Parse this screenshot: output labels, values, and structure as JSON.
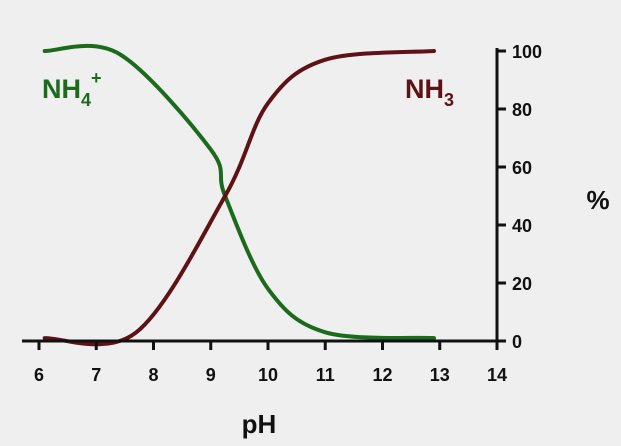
{
  "chart_data": {
    "type": "line",
    "xlabel": "pH",
    "ylabel": "%",
    "xlim": [
      6,
      14
    ],
    "ylim": [
      0,
      100
    ],
    "xticks": [
      6,
      7,
      8,
      9,
      10,
      11,
      12,
      13,
      14
    ],
    "yticks": [
      0,
      20,
      40,
      60,
      80,
      100
    ],
    "y_axis_position": "right",
    "grid": false,
    "legend": "none (series labeled directly on plot)",
    "series": [
      {
        "name": "NH4+",
        "label_main": "NH",
        "label_sub": "4",
        "label_sup": "+",
        "label_position": "upper-left",
        "color": "#1c6b1c",
        "x": [
          6.1,
          7.4,
          9.0,
          9.25,
          10.0,
          11.0,
          12.9
        ],
        "y": [
          100,
          99,
          66,
          50,
          18,
          3,
          1
        ]
      },
      {
        "name": "NH3",
        "label_main": "NH",
        "label_sub": "3",
        "label_position": "upper-right",
        "color": "#5e1216",
        "x": [
          6.1,
          7.7,
          9.25,
          10.0,
          11.0,
          12.9
        ],
        "y": [
          1,
          3,
          50,
          82,
          97,
          100
        ]
      }
    ]
  }
}
